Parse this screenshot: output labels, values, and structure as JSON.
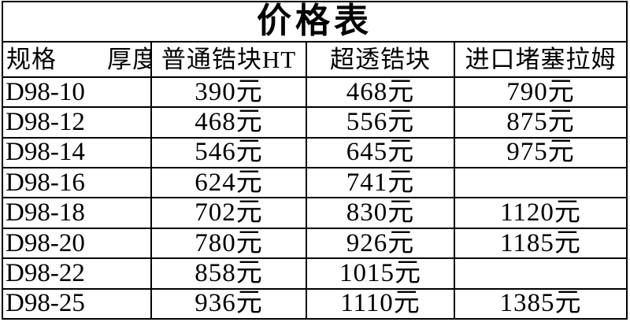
{
  "title": "价格表",
  "columns": [
    "规格　　厚度",
    "普通锆块HT",
    "超透锆块",
    "进口堵塞拉姆"
  ],
  "rows": [
    [
      "D98-10",
      "390元",
      "468元",
      "790元"
    ],
    [
      "D98-12",
      "468元",
      "556元",
      "875元"
    ],
    [
      "D98-14",
      "546元",
      "645元",
      "975元"
    ],
    [
      "D98-16",
      "624元",
      "741元",
      ""
    ],
    [
      "D98-18",
      "702元",
      "830元",
      "1120元"
    ],
    [
      "D98-20",
      "780元",
      "926元",
      "1185元"
    ],
    [
      "D98-22",
      "858元",
      "1015元",
      ""
    ],
    [
      "D98-25",
      "936元",
      "1110元",
      "1385元"
    ]
  ],
  "colors": {
    "text": "#000000",
    "border": "#000000",
    "background": "#ffffff"
  },
  "chart_data": {
    "type": "table",
    "title": "价格表",
    "columns": [
      "规格 厚度",
      "普通锆块HT",
      "超透锆块",
      "进口堵塞拉姆"
    ],
    "rows": [
      [
        "D98-10",
        "390元",
        "468元",
        "790元"
      ],
      [
        "D98-12",
        "468元",
        "556元",
        "875元"
      ],
      [
        "D98-14",
        "546元",
        "645元",
        "975元"
      ],
      [
        "D98-16",
        "624元",
        "741元",
        ""
      ],
      [
        "D98-18",
        "702元",
        "830元",
        "1120元"
      ],
      [
        "D98-20",
        "780元",
        "926元",
        "1185元"
      ],
      [
        "D98-22",
        "858元",
        "1015元",
        ""
      ],
      [
        "D98-25",
        "936元",
        "1110元",
        "1385元"
      ]
    ]
  }
}
